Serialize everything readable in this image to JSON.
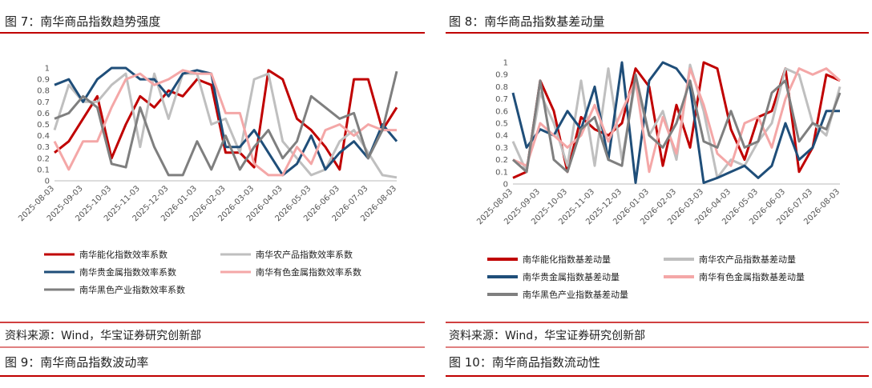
{
  "chart_data": [
    {
      "type": "line",
      "title": "图 7：南华商品指数趋势强度",
      "categories": [
        "2025-08-03",
        null,
        "2025-09-03",
        null,
        "2025-10-03",
        null,
        "2025-11-03",
        null,
        "2025-12-03",
        null,
        "2026-01-03",
        null,
        "2026-02-03",
        null,
        "2026-03-03",
        null,
        "2026-04-03",
        null,
        "2026-05-03",
        null,
        "2026-06-03",
        null,
        "2026-07-03",
        null,
        "2026-08-03"
      ],
      "ylim": [
        0,
        1
      ],
      "yticks": [
        0,
        0.1,
        0.2,
        0.3,
        0.4,
        0.5,
        0.6,
        0.7,
        0.8,
        0.9,
        1
      ],
      "series": [
        {
          "name": "南华能化指数效率系数",
          "color": "#c00000",
          "values": [
            0.25,
            0.35,
            0.55,
            0.75,
            0.2,
            0.5,
            0.75,
            0.65,
            0.8,
            0.75,
            0.9,
            0.85,
            0.25,
            0.25,
            0.12,
            0.98,
            0.9,
            0.55,
            0.45,
            0.3,
            0.1,
            0.9,
            0.9,
            0.45,
            0.65
          ]
        },
        {
          "name": "南华农产品指数效率系数",
          "color": "#bfbfbf",
          "values": [
            0.45,
            0.85,
            0.7,
            0.7,
            0.85,
            0.95,
            0.3,
            0.95,
            0.55,
            0.95,
            0.95,
            0.5,
            0.55,
            0.25,
            0.9,
            0.95,
            0.35,
            0.2,
            0.05,
            0.1,
            0.35,
            0.45,
            0.25,
            0.05,
            0.03
          ]
        },
        {
          "name": "南华贵金属指数效率系数",
          "color": "#1f4e79",
          "values": [
            0.85,
            0.9,
            0.7,
            0.9,
            1,
            1,
            0.9,
            0.9,
            0.75,
            0.95,
            0.98,
            0.95,
            0.3,
            0.3,
            0.45,
            0.25,
            0.05,
            0.15,
            0.4,
            0.1,
            0.25,
            0.35,
            0.2,
            0.5,
            0.35
          ]
        },
        {
          "name": "南华有色金属指数效率系数",
          "color": "#f4a7a7",
          "values": [
            0.35,
            0.1,
            0.35,
            0.35,
            0.65,
            0.9,
            0.95,
            0.85,
            0.9,
            0.98,
            0.95,
            0.95,
            0.6,
            0.6,
            0.15,
            0.05,
            0.05,
            0.3,
            0.15,
            0.45,
            0.5,
            0.4,
            0.5,
            0.45,
            0.45
          ]
        },
        {
          "name": "南华黑色产业指数效率系数",
          "color": "#7f7f7f",
          "values": [
            0.55,
            0.6,
            0.75,
            0.65,
            0.15,
            0.12,
            0.65,
            0.3,
            0.05,
            0.05,
            0.35,
            0.1,
            0.4,
            0.1,
            0.3,
            0.45,
            0.2,
            0.35,
            0.75,
            0.65,
            0.55,
            0.6,
            0.2,
            0.45,
            0.97
          ]
        }
      ],
      "source": "资料来源：Wind，华宝证券研究创新部"
    },
    {
      "type": "line",
      "title": "图 8：南华商品指数基差动量",
      "categories": [
        "2025-08-03",
        null,
        "2025-09-03",
        null,
        "2025-10-03",
        null,
        "2025-11-03",
        null,
        "2025-12-03",
        null,
        "2026-01-03",
        null,
        "2026-02-03",
        null,
        "2026-03-03",
        null,
        "2026-04-03",
        null,
        "2026-05-03",
        null,
        "2026-06-03",
        null,
        "2026-07-03",
        null,
        "2026-08-03"
      ],
      "ylim": [
        0,
        1
      ],
      "yticks": [
        0,
        0.1,
        0.2,
        0.3,
        0.4,
        0.5,
        0.6,
        0.7,
        0.8,
        0.9,
        1
      ],
      "series": [
        {
          "name": "南华能化指数基差动量",
          "color": "#c00000",
          "values": [
            0.05,
            0.1,
            0.85,
            0.6,
            0.1,
            0.55,
            0.45,
            0.4,
            0.5,
            0.95,
            0.8,
            0.15,
            0.65,
            0.3,
            1,
            0.95,
            0.45,
            0.2,
            0.55,
            0.6,
            0.95,
            0.1,
            0.3,
            0.9,
            0.85
          ]
        },
        {
          "name": "南华农产品指数基差动量",
          "color": "#bfbfbf",
          "values": [
            0.35,
            0.1,
            0.75,
            0.5,
            0.15,
            0.85,
            0.15,
            0.95,
            0.2,
            0.85,
            0.4,
            0.6,
            0.2,
            0.98,
            0.6,
            0.05,
            0.2,
            0.15,
            0.35,
            0.5,
            0.95,
            0.9,
            0.5,
            0.4,
            0.8
          ]
        },
        {
          "name": "南华贵金属指数基差动量",
          "color": "#1f4e79",
          "values": [
            0.75,
            0.3,
            0.45,
            0.4,
            0.6,
            0.45,
            0.8,
            0.2,
            1,
            0.01,
            0.85,
            1,
            0.95,
            0.8,
            0.01,
            0.05,
            0.1,
            0.15,
            0.05,
            0.15,
            0.5,
            0.2,
            0.3,
            0.6,
            0.6
          ]
        },
        {
          "name": "南华有色金属指数基差动量",
          "color": "#f4a7a7",
          "values": [
            0.2,
            0.15,
            0.5,
            0.4,
            0.3,
            0.4,
            0.65,
            0.35,
            0.6,
            0.85,
            0.1,
            0.55,
            0.25,
            0.95,
            0.65,
            0.25,
            0.15,
            0.5,
            0.55,
            0.3,
            0.7,
            0.95,
            0.9,
            0.95,
            0.85
          ]
        },
        {
          "name": "南华黑色产业指数基差动量",
          "color": "#7f7f7f",
          "values": [
            0.2,
            0.1,
            0.85,
            0.2,
            0.1,
            0.45,
            0.55,
            0.2,
            0.15,
            0.9,
            0.4,
            0.3,
            0.5,
            0.85,
            0.35,
            0.3,
            0.6,
            0.3,
            0.35,
            0.75,
            0.85,
            0.35,
            0.5,
            0.45,
            0.75
          ]
        }
      ],
      "source": "资料来源：Wind，华宝证券研究创新部"
    }
  ],
  "next_figures": [
    "图 9：南华商品指数波动率",
    "图 10：南华商品指数流动性"
  ]
}
